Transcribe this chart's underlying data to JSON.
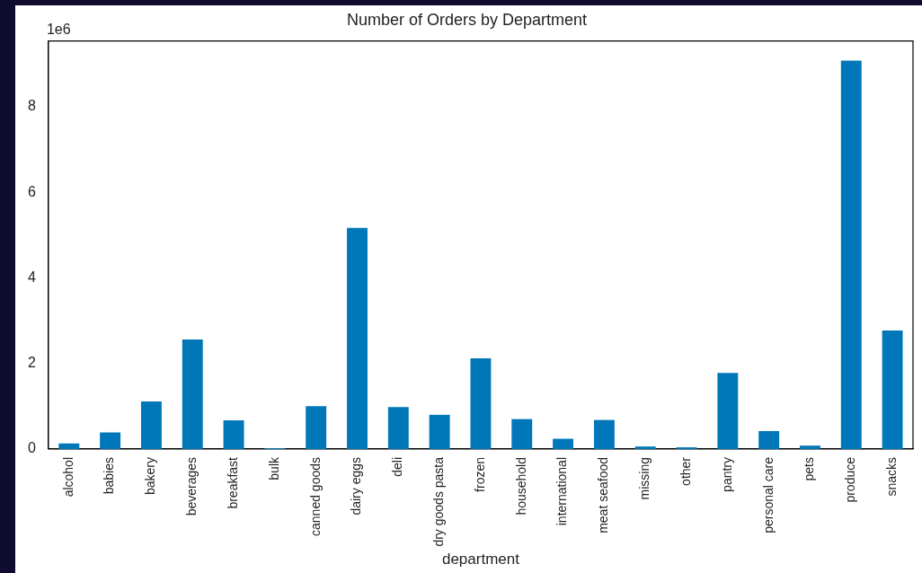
{
  "chart_data": {
    "type": "bar",
    "title": "Number of Orders by Department",
    "xlabel": "department",
    "categories": [
      "alcohol",
      "babies",
      "bakery",
      "beverages",
      "breakfast",
      "bulk",
      "canned goods",
      "dairy eggs",
      "deli",
      "dry goods pasta",
      "frozen",
      "household",
      "international",
      "meat seafood",
      "missing",
      "other",
      "pantry",
      "personal care",
      "pets",
      "produce",
      "snacks"
    ],
    "values": [
      0.13,
      0.39,
      1.11,
      2.56,
      0.67,
      0.02,
      1.0,
      5.17,
      0.98,
      0.8,
      2.12,
      0.7,
      0.24,
      0.68,
      0.06,
      0.04,
      1.78,
      0.42,
      0.08,
      9.08,
      2.77
    ],
    "color": "#0077b8",
    "ylim": [
      0,
      9.54
    ],
    "yticks": [
      0,
      2,
      4,
      6,
      8
    ],
    "annotations": [
      "1e6"
    ],
    "grid": false,
    "legend": false
  }
}
